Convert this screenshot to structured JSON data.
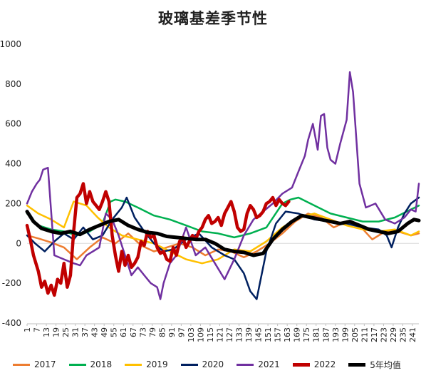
{
  "chart_data": {
    "type": "line",
    "title": "玻璃基差季节性",
    "ylim": [
      -400,
      1000
    ],
    "yticks": [
      -400,
      -200,
      0,
      200,
      400,
      600,
      800,
      1000
    ],
    "xlim": [
      1,
      245
    ],
    "xticks": [
      1,
      7,
      13,
      19,
      25,
      31,
      37,
      43,
      49,
      55,
      61,
      67,
      73,
      79,
      85,
      91,
      97,
      103,
      109,
      115,
      121,
      127,
      133,
      139,
      145,
      151,
      157,
      163,
      169,
      175,
      181,
      187,
      193,
      199,
      205,
      211,
      217,
      223,
      229,
      235,
      241
    ],
    "legend_position": "bottom",
    "grid": false,
    "series": [
      {
        "name": "2017",
        "color": "#ed7d31",
        "width": 2.5,
        "x": [
          1,
          8,
          16,
          24,
          32,
          40,
          48,
          56,
          64,
          72,
          80,
          88,
          96,
          104,
          112,
          120,
          128,
          136,
          144,
          152,
          160,
          168,
          176,
          184,
          192,
          200,
          208,
          216,
          224,
          232,
          240,
          245
        ],
        "y": [
          40,
          25,
          5,
          -20,
          -80,
          -20,
          30,
          0,
          50,
          -10,
          -40,
          -20,
          0,
          -20,
          -60,
          -30,
          -40,
          -70,
          -40,
          0,
          50,
          110,
          150,
          130,
          80,
          110,
          90,
          20,
          60,
          60,
          40,
          50
        ]
      },
      {
        "name": "2018",
        "color": "#00b050",
        "width": 2.5,
        "x": [
          1,
          8,
          16,
          24,
          32,
          40,
          48,
          53,
          56,
          62,
          70,
          80,
          90,
          100,
          110,
          120,
          130,
          140,
          150,
          160,
          165,
          170,
          180,
          190,
          200,
          210,
          220,
          230,
          240,
          245
        ],
        "y": [
          150,
          90,
          70,
          60,
          40,
          60,
          100,
          210,
          220,
          210,
          180,
          140,
          120,
          90,
          60,
          50,
          30,
          50,
          80,
          200,
          220,
          230,
          190,
          150,
          130,
          110,
          110,
          130,
          170,
          190
        ]
      },
      {
        "name": "2019",
        "color": "#ffc000",
        "width": 2.5,
        "x": [
          1,
          8,
          16,
          24,
          30,
          38,
          45,
          52,
          60,
          70,
          80,
          90,
          100,
          110,
          120,
          130,
          140,
          150,
          160,
          170,
          180,
          190,
          200,
          210,
          220,
          230,
          240,
          245
        ],
        "y": [
          190,
          150,
          120,
          80,
          210,
          190,
          130,
          80,
          40,
          20,
          0,
          -40,
          -80,
          -100,
          -80,
          -30,
          -40,
          10,
          80,
          130,
          150,
          120,
          90,
          70,
          60,
          70,
          40,
          60
        ]
      },
      {
        "name": "2020",
        "color": "#002060",
        "width": 2.5,
        "x": [
          1,
          6,
          12,
          18,
          24,
          30,
          36,
          42,
          48,
          54,
          60,
          63,
          68,
          74,
          80,
          86,
          92,
          100,
          108,
          116,
          124,
          130,
          136,
          140,
          144,
          146,
          150,
          156,
          162,
          170,
          180,
          190,
          200,
          210,
          220,
          225,
          228,
          232,
          236,
          240,
          245
        ],
        "y": [
          40,
          0,
          -40,
          10,
          50,
          20,
          80,
          20,
          40,
          120,
          180,
          230,
          130,
          60,
          0,
          -40,
          -30,
          20,
          50,
          -20,
          -60,
          -80,
          -150,
          -240,
          -280,
          -200,
          -40,
          100,
          160,
          150,
          120,
          110,
          100,
          80,
          70,
          40,
          -20,
          80,
          150,
          200,
          230
        ]
      },
      {
        "name": "2021",
        "color": "#7030a0",
        "width": 2.5,
        "x": [
          1,
          4,
          7,
          9,
          11,
          14,
          18,
          24,
          30,
          34,
          38,
          42,
          46,
          50,
          54,
          58,
          62,
          66,
          70,
          74,
          78,
          82,
          84,
          86,
          90,
          94,
          100,
          106,
          112,
          118,
          124,
          130,
          136,
          142,
          148,
          154,
          160,
          166,
          170,
          174,
          176,
          179,
          182,
          184,
          186,
          188,
          190,
          193,
          196,
          200,
          202,
          204,
          208,
          212,
          218,
          224,
          230,
          236,
          240,
          243,
          245
        ],
        "y": [
          200,
          260,
          300,
          320,
          370,
          380,
          -60,
          -80,
          -100,
          -110,
          -60,
          -40,
          -20,
          150,
          120,
          40,
          -60,
          -160,
          -120,
          -160,
          -200,
          -220,
          -280,
          -200,
          -100,
          -60,
          80,
          -60,
          -20,
          -100,
          -180,
          -80,
          40,
          120,
          160,
          200,
          250,
          280,
          360,
          440,
          520,
          600,
          470,
          640,
          650,
          480,
          420,
          400,
          500,
          620,
          860,
          760,
          300,
          180,
          200,
          120,
          100,
          130,
          170,
          160,
          300
        ]
      },
      {
        "name": "2022",
        "color": "#c00000",
        "width": 4.5,
        "x": [
          1,
          3,
          5,
          8,
          10,
          12,
          14,
          16,
          18,
          20,
          22,
          24,
          26,
          28,
          30,
          32,
          34,
          36,
          38,
          40,
          42,
          44,
          46,
          48,
          50,
          52,
          54,
          56,
          58,
          60,
          62,
          64,
          66,
          68,
          70,
          72,
          74,
          76,
          78,
          80,
          82,
          84,
          86,
          88,
          90,
          92,
          94,
          96,
          98,
          100,
          102,
          104,
          106,
          108,
          110,
          112,
          114,
          116,
          118,
          120,
          122,
          124,
          126,
          128,
          130,
          132,
          134,
          136,
          138,
          140,
          142,
          144,
          146,
          148,
          150,
          152,
          154,
          156,
          158,
          160,
          162,
          164
        ],
        "y": [
          90,
          20,
          -60,
          -140,
          -220,
          -190,
          -250,
          -210,
          -260,
          -180,
          -200,
          -100,
          -220,
          -160,
          60,
          230,
          250,
          300,
          200,
          260,
          210,
          190,
          170,
          210,
          260,
          210,
          40,
          -60,
          -140,
          -40,
          -110,
          -60,
          -120,
          -100,
          -70,
          10,
          -10,
          60,
          30,
          40,
          -20,
          -50,
          -40,
          -80,
          -90,
          -20,
          -60,
          10,
          30,
          -20,
          10,
          40,
          20,
          60,
          80,
          120,
          140,
          100,
          110,
          130,
          90,
          150,
          180,
          210,
          160,
          80,
          60,
          70,
          150,
          190,
          170,
          130,
          140,
          160,
          200,
          210,
          230,
          190,
          220,
          200,
          190,
          210
        ]
      },
      {
        "name": "5年均值",
        "color": "#000000",
        "width": 5,
        "x": [
          1,
          5,
          10,
          16,
          22,
          28,
          34,
          40,
          46,
          52,
          58,
          64,
          70,
          76,
          82,
          88,
          94,
          100,
          106,
          112,
          118,
          124,
          130,
          136,
          142,
          148,
          154,
          160,
          166,
          172,
          178,
          184,
          190,
          196,
          202,
          208,
          214,
          220,
          226,
          232,
          238,
          242,
          245
        ],
        "y": [
          160,
          110,
          75,
          60,
          50,
          60,
          45,
          70,
          90,
          110,
          120,
          90,
          70,
          55,
          50,
          35,
          30,
          25,
          20,
          20,
          0,
          -30,
          -40,
          -45,
          -60,
          -50,
          20,
          70,
          110,
          140,
          130,
          120,
          110,
          100,
          110,
          90,
          70,
          60,
          50,
          60,
          100,
          120,
          115
        ]
      }
    ]
  }
}
